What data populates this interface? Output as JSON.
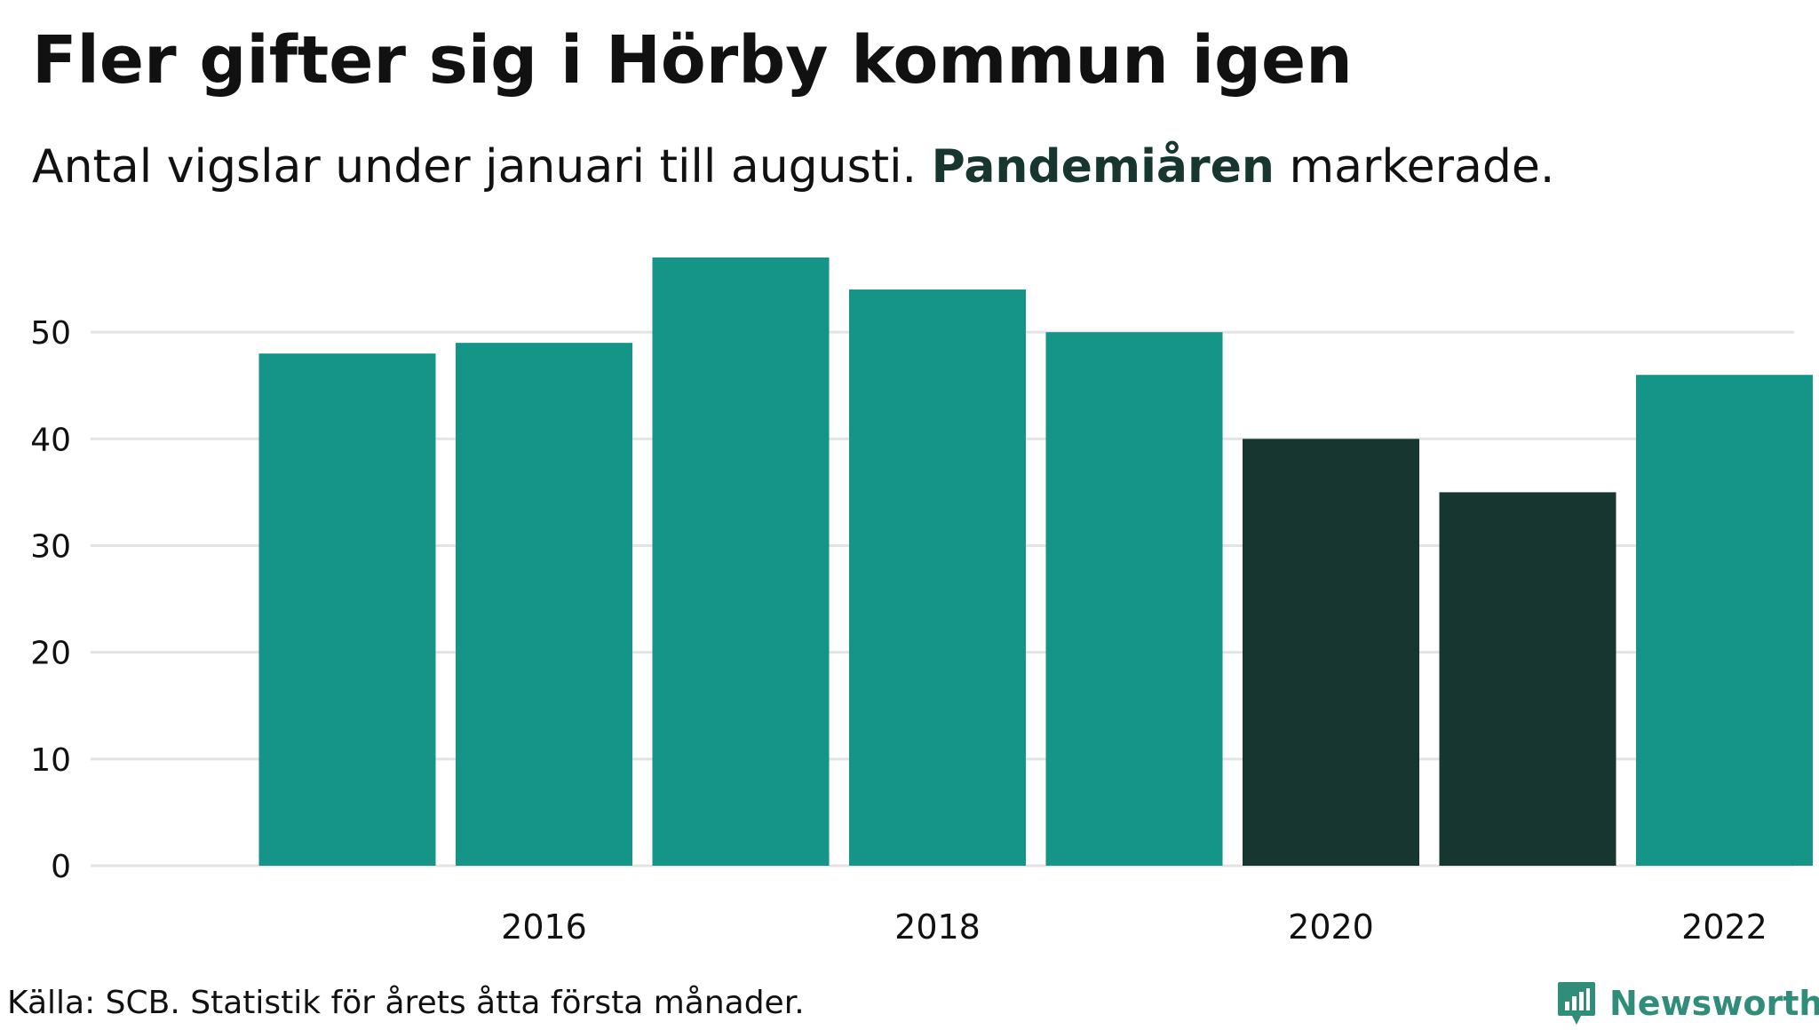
{
  "title": "Fler gifter sig i Hörby kommun igen",
  "subtitle": {
    "before": "Antal vigslar under januari till augusti. ",
    "highlight": "Pandemiåren",
    "after": " markerade."
  },
  "source": "Källa: SCB. Statistik för årets åtta första månader.",
  "logo": {
    "text": "Newsworthy",
    "icon": "newsworthy-logo-icon"
  },
  "colors": {
    "bar": "#149588",
    "highlight": "#173630",
    "grid": "#e3e3e3",
    "logo": "#2f8d7a"
  },
  "chart_data": {
    "type": "bar",
    "categories": [
      "2015",
      "2016",
      "2017",
      "2018",
      "2019",
      "2020",
      "2021",
      "2022"
    ],
    "values": [
      48,
      49,
      57,
      54,
      50,
      40,
      35,
      46
    ],
    "highlighted": [
      "2020",
      "2021"
    ],
    "xticks": [
      "2016",
      "2018",
      "2020",
      "2022"
    ],
    "yticks": [
      0,
      10,
      20,
      30,
      40,
      50
    ],
    "ylim": [
      0,
      57
    ],
    "grid": true,
    "xlabel": "",
    "ylabel": ""
  }
}
